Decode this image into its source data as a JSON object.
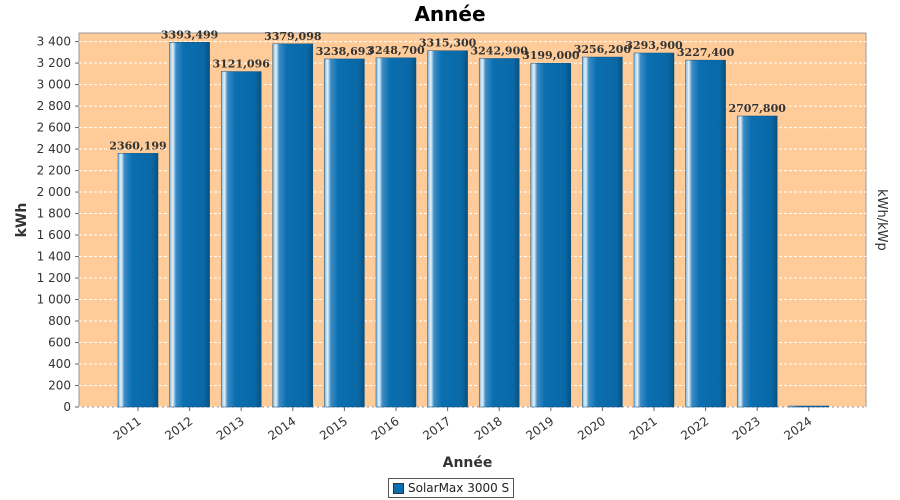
{
  "chart_data": {
    "type": "bar",
    "title": "Année",
    "xlabel": "Année",
    "ylabel": "kWh",
    "y2label": "kWh/kWp",
    "categories": [
      "2011",
      "2012",
      "2013",
      "2014",
      "2015",
      "2016",
      "2017",
      "2018",
      "2019",
      "2020",
      "2021",
      "2022",
      "2023",
      "2024"
    ],
    "series": [
      {
        "name": "SolarMax 3000 S",
        "values": [
          2360.199,
          3393.499,
          3121.096,
          3379.098,
          3238.693,
          3248.7,
          3315.3,
          3242.9,
          3199.0,
          3256.2,
          3293.9,
          3227.4,
          2707.8,
          0
        ],
        "labels": [
          "2360,199",
          "3393,499",
          "3121,096",
          "3379,098",
          "3238,693",
          "3248,700",
          "3315,300",
          "3242,900",
          "3199,000",
          "3256,200",
          "3293,900",
          "3227,400",
          "2707,800",
          ""
        ]
      }
    ],
    "ylim": [
      0,
      3400
    ],
    "yticks": [
      0,
      200,
      400,
      600,
      800,
      1000,
      1200,
      1400,
      1600,
      1800,
      2000,
      2200,
      2400,
      2600,
      2800,
      3000,
      3200,
      3400
    ],
    "ytick_labels": [
      "0",
      "200",
      "400",
      "600",
      "800",
      "1 000",
      "1 200",
      "1 400",
      "1 600",
      "1 800",
      "2 000",
      "2 200",
      "2 400",
      "2 600",
      "2 800",
      "3 000",
      "3 200",
      "3 400"
    ],
    "grid": true,
    "legend_position": "bottom-center",
    "colors": {
      "plot_background": "#ffcc99",
      "bar": "#0a6fb0",
      "bar_highlight": "#cfe6f5",
      "grid": "#ffffff"
    }
  }
}
